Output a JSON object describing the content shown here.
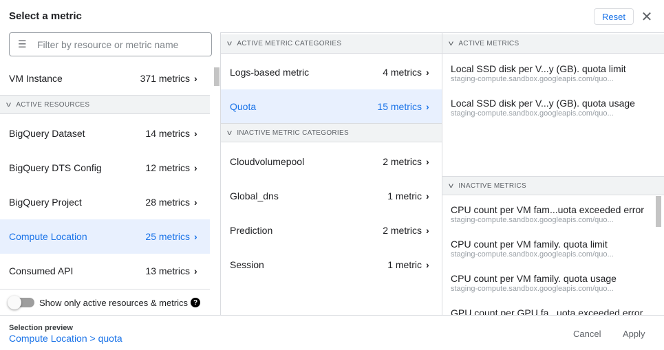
{
  "header": {
    "title": "Select a metric",
    "reset_label": "Reset",
    "close_icon": "close-icon"
  },
  "resources": {
    "search_placeholder": "Filter by resource or metric name",
    "top_item": {
      "label": "VM Instance",
      "count": "371 metrics"
    },
    "active_header": "ACTIVE RESOURCES",
    "items": [
      {
        "label": "BigQuery Dataset",
        "count": "14 metrics"
      },
      {
        "label": "BigQuery DTS Config",
        "count": "12 metrics"
      },
      {
        "label": "BigQuery Project",
        "count": "28 metrics"
      },
      {
        "label": "Compute Location",
        "count": "25 metrics",
        "selected": true
      },
      {
        "label": "Consumed API",
        "count": "13 metrics"
      }
    ],
    "toggle_label": "Show only active resources & metrics",
    "toggle_on": false
  },
  "categories": {
    "active_header": "ACTIVE METRIC CATEGORIES",
    "active": [
      {
        "label": "Logs-based metric",
        "count": "4 metrics"
      },
      {
        "label": "Quota",
        "count": "15 metrics",
        "selected": true
      }
    ],
    "inactive_header": "INACTIVE METRIC CATEGORIES",
    "inactive": [
      {
        "label": "Cloudvolumepool",
        "count": "2 metrics"
      },
      {
        "label": "Global_dns",
        "count": "1 metric"
      },
      {
        "label": "Prediction",
        "count": "2 metrics"
      },
      {
        "label": "Session",
        "count": "1 metric"
      }
    ]
  },
  "metrics": {
    "active_header": "ACTIVE METRICS",
    "active": [
      {
        "name": "Local SSD disk per V...y (GB). quota limit",
        "sub": "staging-compute.sandbox.googleapis.com/quo..."
      },
      {
        "name": "Local SSD disk per V...y (GB). quota usage",
        "sub": "staging-compute.sandbox.googleapis.com/quo..."
      }
    ],
    "inactive_header": "INACTIVE METRICS",
    "inactive": [
      {
        "name": "CPU count per VM fam...uota exceeded error",
        "sub": "staging-compute.sandbox.googleapis.com/quo..."
      },
      {
        "name": "CPU count per VM family. quota limit",
        "sub": "staging-compute.sandbox.googleapis.com/quo..."
      },
      {
        "name": "CPU count per VM family. quota usage",
        "sub": "staging-compute.sandbox.googleapis.com/quo..."
      },
      {
        "name": "GPU count per GPU fa...uota exceeded error",
        "sub": ""
      }
    ]
  },
  "footer": {
    "preview_label": "Selection preview",
    "preview_value": "Compute Location > quota",
    "cancel_label": "Cancel",
    "apply_label": "Apply"
  },
  "colors": {
    "accent": "#1a73e8",
    "selected_bg": "#e8f0fe"
  }
}
